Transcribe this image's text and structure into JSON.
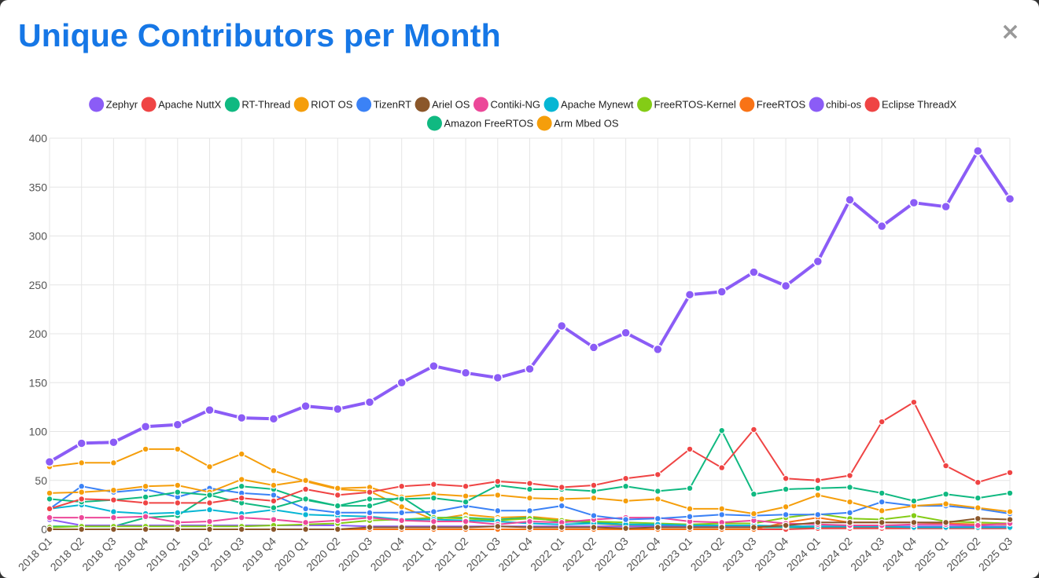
{
  "modal": {
    "title": "Unique Contributors per Month",
    "close_symbol": "×"
  },
  "chart_data": {
    "type": "line",
    "title": "",
    "xlabel": "",
    "ylabel": "",
    "ylim": [
      0,
      400
    ],
    "yticks": [
      0,
      50,
      100,
      150,
      200,
      250,
      300,
      350,
      400
    ],
    "grid": true,
    "legend_position": "top",
    "categories": [
      "2018 Q1",
      "2018 Q2",
      "2018 Q3",
      "2018 Q4",
      "2019 Q1",
      "2019 Q2",
      "2019 Q3",
      "2019 Q4",
      "2020 Q1",
      "2020 Q2",
      "2020 Q3",
      "2020 Q4",
      "2021 Q1",
      "2021 Q2",
      "2021 Q3",
      "2021 Q4",
      "2022 Q1",
      "2022 Q2",
      "2022 Q3",
      "2022 Q4",
      "2023 Q1",
      "2023 Q2",
      "2023 Q3",
      "2023 Q4",
      "2024 Q1",
      "2024 Q2",
      "2024 Q3",
      "2024 Q4",
      "2025 Q1",
      "2025 Q2",
      "2025 Q3"
    ],
    "series": [
      {
        "name": "Zephyr",
        "color": "#8b5cf6",
        "values": [
          69,
          88,
          89,
          105,
          107,
          122,
          114,
          113,
          126,
          123,
          130,
          150,
          167,
          160,
          155,
          164,
          208,
          186,
          201,
          184,
          240,
          243,
          263,
          249,
          274,
          337,
          310,
          334,
          330,
          387,
          338
        ]
      },
      {
        "name": "Apache NuttX",
        "color": "#ef4444",
        "values": [
          21,
          31,
          30,
          27,
          27,
          27,
          32,
          29,
          41,
          35,
          38,
          44,
          46,
          44,
          49,
          47,
          43,
          45,
          52,
          56,
          82,
          63,
          102,
          52,
          50,
          55,
          110,
          130,
          65,
          48,
          58
        ]
      },
      {
        "name": "RT-Thread",
        "color": "#10b981",
        "values": [
          31,
          28,
          30,
          33,
          38,
          35,
          27,
          22,
          31,
          24,
          31,
          31,
          32,
          28,
          45,
          41,
          41,
          39,
          44,
          39,
          42,
          101,
          36,
          41,
          42,
          43,
          37,
          29,
          36,
          32,
          37
        ]
      },
      {
        "name": "RIOT OS",
        "color": "#f59e0b",
        "values": [
          37,
          38,
          40,
          44,
          45,
          38,
          51,
          45,
          50,
          42,
          43,
          33,
          36,
          34,
          35,
          32,
          31,
          32,
          29,
          31,
          21,
          21,
          16,
          23,
          35,
          28,
          19,
          24,
          26,
          22,
          18
        ]
      },
      {
        "name": "TizenRT",
        "color": "#3b82f6",
        "values": [
          21,
          44,
          38,
          41,
          33,
          42,
          37,
          35,
          21,
          17,
          17,
          17,
          18,
          24,
          19,
          19,
          24,
          14,
          10,
          11,
          13,
          15,
          14,
          15,
          15,
          17,
          28,
          24,
          24,
          21,
          16
        ]
      },
      {
        "name": "Ariel OS",
        "color": "#8b572a",
        "values": [
          0,
          0,
          0,
          0,
          0,
          0,
          0,
          0,
          0,
          0,
          2,
          2,
          2,
          2,
          3,
          2,
          2,
          2,
          1,
          2,
          2,
          2,
          2,
          4,
          7,
          7,
          7,
          7,
          7,
          11,
          10
        ]
      },
      {
        "name": "Contiki-NG",
        "color": "#ec4899",
        "values": [
          12,
          12,
          12,
          13,
          7,
          8,
          12,
          10,
          7,
          9,
          12,
          9,
          8,
          8,
          5,
          8,
          7,
          10,
          12,
          12,
          8,
          7,
          9,
          6,
          5,
          4,
          4,
          5,
          5,
          4,
          6
        ]
      },
      {
        "name": "Apache Mynewt",
        "color": "#06b6d4",
        "values": [
          21,
          25,
          18,
          16,
          17,
          20,
          16,
          20,
          15,
          14,
          13,
          10,
          10,
          9,
          8,
          6,
          5,
          6,
          5,
          5,
          4,
          4,
          4,
          3,
          3,
          3,
          3,
          2,
          2,
          2,
          2
        ]
      },
      {
        "name": "FreeRTOS-Kernel",
        "color": "#84cc16",
        "values": [
          2,
          3,
          3,
          3,
          3,
          3,
          3,
          4,
          5,
          6,
          9,
          10,
          12,
          11,
          9,
          11,
          9,
          8,
          7,
          6,
          5,
          6,
          6,
          12,
          16,
          11,
          10,
          14,
          8,
          7,
          6
        ]
      },
      {
        "name": "FreeRTOS",
        "color": "#f97316",
        "values": [
          0,
          0,
          0,
          0,
          0,
          0,
          0,
          0,
          0,
          0,
          0,
          0,
          0,
          0,
          0,
          0,
          0,
          0,
          0,
          0,
          0,
          0,
          0,
          7,
          12,
          7,
          7,
          7,
          6,
          5,
          5
        ]
      },
      {
        "name": "chibi-os",
        "color": "#8b5cf6",
        "values": [
          10,
          4,
          4,
          4,
          4,
          4,
          4,
          4,
          4,
          4,
          3,
          3,
          3,
          3,
          3,
          3,
          3,
          3,
          3,
          3,
          3,
          3,
          3,
          3,
          3,
          3,
          3,
          3,
          3,
          3,
          3
        ]
      },
      {
        "name": "Eclipse ThreadX",
        "color": "#ef4444",
        "values": [
          0,
          0,
          0,
          0,
          0,
          0,
          0,
          0,
          0,
          0,
          0,
          0,
          0,
          0,
          0,
          0,
          0,
          0,
          0,
          0,
          0,
          0,
          0,
          0,
          1,
          1,
          1,
          1,
          1,
          1,
          1
        ]
      },
      {
        "name": "Amazon FreeRTOS",
        "color": "#10b981",
        "values": [
          3,
          3,
          3,
          12,
          14,
          35,
          44,
          41,
          30,
          24,
          24,
          33,
          12,
          12,
          10,
          12,
          8,
          7,
          5,
          4,
          2,
          2,
          2,
          2,
          2,
          2,
          2,
          2,
          2,
          2,
          2
        ]
      },
      {
        "name": "Arm Mbed OS",
        "color": "#f59e0b",
        "values": [
          64,
          68,
          68,
          82,
          82,
          64,
          77,
          60,
          49,
          41,
          39,
          23,
          10,
          15,
          12,
          13,
          10,
          6,
          4,
          4,
          2,
          2,
          2,
          2,
          2,
          2,
          2,
          2,
          2,
          2,
          2
        ]
      }
    ]
  }
}
